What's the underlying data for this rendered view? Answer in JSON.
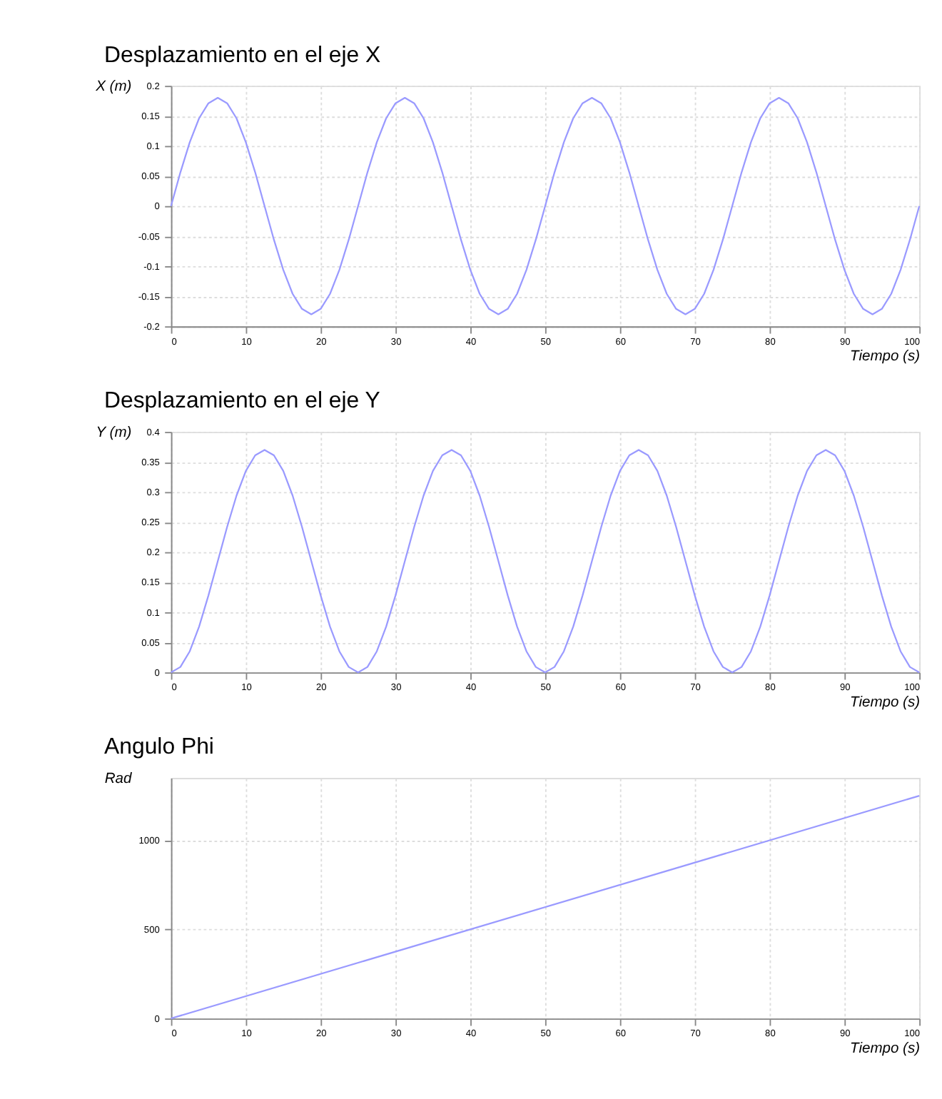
{
  "chart_data": [
    {
      "type": "line",
      "title": "Desplazamiento en el eje X",
      "xlabel": "Tiempo (s)",
      "ylabel": "X (m)",
      "x": [
        0,
        1.25,
        2.5,
        3.75,
        5,
        6.25,
        7.5,
        8.75,
        10,
        11.25,
        12.5,
        13.75,
        15,
        16.25,
        17.5,
        18.75,
        20,
        21.25,
        22.5,
        23.75,
        25,
        26.25,
        27.5,
        28.75,
        30,
        31.25,
        32.5,
        33.75,
        35,
        36.25,
        37.5,
        38.75,
        40,
        41.25,
        42.5,
        43.75,
        45,
        46.25,
        47.5,
        48.75,
        50,
        51.25,
        52.5,
        53.75,
        55,
        56.25,
        57.5,
        58.75,
        60,
        61.25,
        62.5,
        63.75,
        65,
        66.25,
        67.5,
        68.75,
        70,
        71.25,
        72.5,
        73.75,
        75,
        76.25,
        77.5,
        78.75,
        80,
        81.25,
        82.5,
        83.75,
        85,
        86.25,
        87.5,
        88.75,
        90,
        91.25,
        92.5,
        93.75,
        95,
        96.25,
        97.5,
        98.75,
        100
      ],
      "series": [
        {
          "color": "#9a9aff",
          "values": [
            0,
            0.056,
            0.106,
            0.146,
            0.171,
            0.18,
            0.171,
            0.146,
            0.106,
            0.056,
            0,
            -0.056,
            -0.106,
            -0.146,
            -0.171,
            -0.18,
            -0.171,
            -0.146,
            -0.106,
            -0.056,
            0,
            0.056,
            0.106,
            0.146,
            0.171,
            0.18,
            0.171,
            0.146,
            0.106,
            0.056,
            0,
            -0.056,
            -0.106,
            -0.146,
            -0.171,
            -0.18,
            -0.171,
            -0.146,
            -0.106,
            -0.056,
            0,
            0.056,
            0.106,
            0.146,
            0.171,
            0.18,
            0.171,
            0.146,
            0.106,
            0.056,
            0,
            -0.056,
            -0.106,
            -0.146,
            -0.171,
            -0.18,
            -0.171,
            -0.146,
            -0.106,
            -0.056,
            0,
            0.056,
            0.106,
            0.146,
            0.171,
            0.18,
            0.171,
            0.146,
            0.106,
            0.056,
            0,
            -0.056,
            -0.106,
            -0.146,
            -0.171,
            -0.18,
            -0.171,
            -0.146,
            -0.106,
            -0.056,
            0
          ]
        }
      ],
      "xlim": [
        0,
        100
      ],
      "xticks": [
        0,
        10,
        20,
        30,
        40,
        50,
        60,
        70,
        80,
        90,
        100
      ],
      "ylim": [
        -0.2,
        0.2
      ],
      "yticks": [
        -0.2,
        -0.15,
        -0.1,
        -0.05,
        0,
        0.05,
        0.1,
        0.15,
        0.2
      ],
      "grid": true,
      "line_style": "solid",
      "marker": "none"
    },
    {
      "type": "line",
      "title": "Desplazamiento en el eje Y",
      "xlabel": "Tiempo (s)",
      "ylabel": "Y (m)",
      "x": [
        0,
        1.25,
        2.5,
        3.75,
        5,
        6.25,
        7.5,
        8.75,
        10,
        11.25,
        12.5,
        13.75,
        15,
        16.25,
        17.5,
        18.75,
        20,
        21.25,
        22.5,
        23.75,
        25,
        26.25,
        27.5,
        28.75,
        30,
        31.25,
        32.5,
        33.75,
        35,
        36.25,
        37.5,
        38.75,
        40,
        41.25,
        42.5,
        43.75,
        45,
        46.25,
        47.5,
        48.75,
        50,
        51.25,
        52.5,
        53.75,
        55,
        56.25,
        57.5,
        58.75,
        60,
        61.25,
        62.5,
        63.75,
        65,
        66.25,
        67.5,
        68.75,
        70,
        71.25,
        72.5,
        73.75,
        75,
        76.25,
        77.5,
        78.75,
        80,
        81.25,
        82.5,
        83.75,
        85,
        86.25,
        87.5,
        88.75,
        90,
        91.25,
        92.5,
        93.75,
        95,
        96.25,
        97.5,
        98.75,
        100
      ],
      "series": [
        {
          "color": "#9a9aff",
          "values": [
            0,
            0.009,
            0.035,
            0.076,
            0.128,
            0.185,
            0.242,
            0.294,
            0.335,
            0.361,
            0.37,
            0.361,
            0.335,
            0.294,
            0.242,
            0.185,
            0.128,
            0.076,
            0.035,
            0.009,
            0,
            0.009,
            0.035,
            0.076,
            0.128,
            0.185,
            0.242,
            0.294,
            0.335,
            0.361,
            0.37,
            0.361,
            0.335,
            0.294,
            0.242,
            0.185,
            0.128,
            0.076,
            0.035,
            0.009,
            0,
            0.009,
            0.035,
            0.076,
            0.128,
            0.185,
            0.242,
            0.294,
            0.335,
            0.361,
            0.37,
            0.361,
            0.335,
            0.294,
            0.242,
            0.185,
            0.128,
            0.076,
            0.035,
            0.009,
            0,
            0.009,
            0.035,
            0.076,
            0.128,
            0.185,
            0.242,
            0.294,
            0.335,
            0.361,
            0.37,
            0.361,
            0.335,
            0.294,
            0.242,
            0.185,
            0.128,
            0.076,
            0.035,
            0.009,
            0
          ]
        }
      ],
      "xlim": [
        0,
        100
      ],
      "xticks": [
        0,
        10,
        20,
        30,
        40,
        50,
        60,
        70,
        80,
        90,
        100
      ],
      "ylim": [
        0,
        0.4
      ],
      "yticks": [
        0,
        0.05,
        0.1,
        0.15,
        0.2,
        0.25,
        0.3,
        0.35,
        0.4
      ],
      "grid": true,
      "line_style": "solid",
      "marker": "none"
    },
    {
      "type": "line",
      "title": "Angulo Phi",
      "xlabel": "Tiempo (s)",
      "ylabel": "Rad",
      "x": [
        0,
        100
      ],
      "series": [
        {
          "color": "#9a9aff",
          "values": [
            0,
            1250
          ]
        }
      ],
      "xlim": [
        0,
        100
      ],
      "xticks": [
        0,
        10,
        20,
        30,
        40,
        50,
        60,
        70,
        80,
        90,
        100
      ],
      "ylim": [
        0,
        1350
      ],
      "yticks": [
        0,
        500,
        1000
      ],
      "grid": true,
      "line_style": "solid",
      "marker": "none"
    }
  ]
}
